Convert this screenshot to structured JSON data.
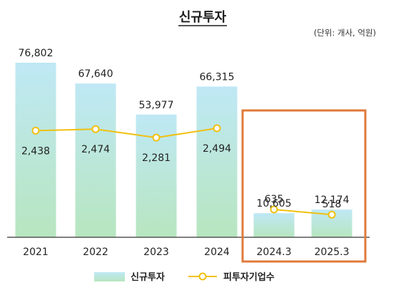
{
  "chart_data": {
    "type": "bar",
    "title": "신규투자",
    "unit_note": "(단위: 개사, 억원)",
    "categories": [
      "2021",
      "2022",
      "2023",
      "2024",
      "2024.3",
      "2025.3"
    ],
    "series": [
      {
        "name": "신규투자",
        "type": "bar",
        "values": [
          76802,
          67640,
          53977,
          66315,
          10605,
          12174
        ],
        "labels": [
          "76,802",
          "67,640",
          "53,977",
          "66,315",
          "10,605",
          "12,174"
        ]
      },
      {
        "name": "피투자기업수",
        "type": "line",
        "values": [
          2438,
          2474,
          2281,
          2494,
          635,
          518
        ],
        "labels": [
          "2,438",
          "2,474",
          "2,281",
          "2,494",
          "635",
          "518"
        ]
      }
    ],
    "line_segments": [
      [
        0,
        3
      ],
      [
        4,
        5
      ]
    ],
    "highlight": {
      "from": "2024.3",
      "to": "2025.3"
    },
    "colors": {
      "bar_top": "#bfe8f5",
      "bar_bottom": "#b7e6bf",
      "line": "#f0c010",
      "marker_fill": "#ffffff",
      "highlight": "#e07a3a",
      "axis": "#555555"
    }
  }
}
